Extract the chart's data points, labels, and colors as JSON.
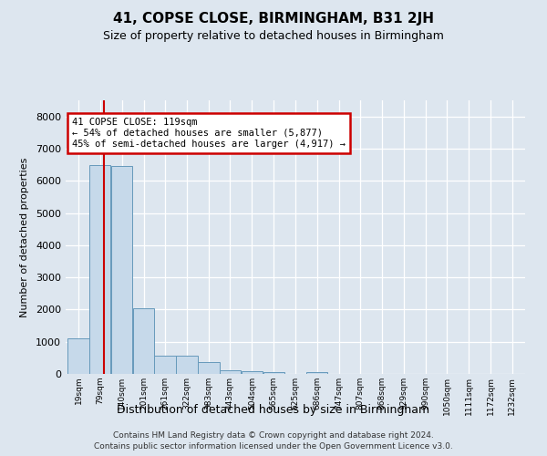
{
  "title": "41, COPSE CLOSE, BIRMINGHAM, B31 2JH",
  "subtitle": "Size of property relative to detached houses in Birmingham",
  "xlabel": "Distribution of detached houses by size in Birmingham",
  "ylabel": "Number of detached properties",
  "footnote1": "Contains HM Land Registry data © Crown copyright and database right 2024.",
  "footnote2": "Contains public sector information licensed under the Open Government Licence v3.0.",
  "bar_color": "#c6d9ea",
  "bar_edge_color": "#6699bb",
  "vline_color": "#cc0000",
  "annotation_text": "41 COPSE CLOSE: 119sqm\n← 54% of detached houses are smaller (5,877)\n45% of semi-detached houses are larger (4,917) →",
  "annotation_box_color": "#ffffff",
  "annotation_border_color": "#cc0000",
  "categories": [
    "19sqm",
    "79sqm",
    "140sqm",
    "201sqm",
    "261sqm",
    "322sqm",
    "383sqm",
    "443sqm",
    "504sqm",
    "565sqm",
    "625sqm",
    "686sqm",
    "747sqm",
    "807sqm",
    "868sqm",
    "929sqm",
    "990sqm",
    "1050sqm",
    "1111sqm",
    "1172sqm",
    "1232sqm"
  ],
  "values": [
    1100,
    6500,
    6450,
    2050,
    560,
    560,
    370,
    120,
    90,
    50,
    0,
    60,
    0,
    0,
    0,
    0,
    0,
    0,
    0,
    0,
    0
  ],
  "ylim": [
    0,
    8500
  ],
  "yticks": [
    0,
    1000,
    2000,
    3000,
    4000,
    5000,
    6000,
    7000,
    8000
  ],
  "background_color": "#dde6ef",
  "plot_bg_color": "#dde6ef",
  "grid_color": "#ffffff",
  "property_size_bin_index": 1,
  "bin_edges": [
    19,
    79,
    140,
    201,
    261,
    322,
    383,
    443,
    504,
    565,
    625,
    686,
    747,
    807,
    868,
    929,
    990,
    1050,
    1111,
    1172,
    1232
  ],
  "vline_x": 119
}
